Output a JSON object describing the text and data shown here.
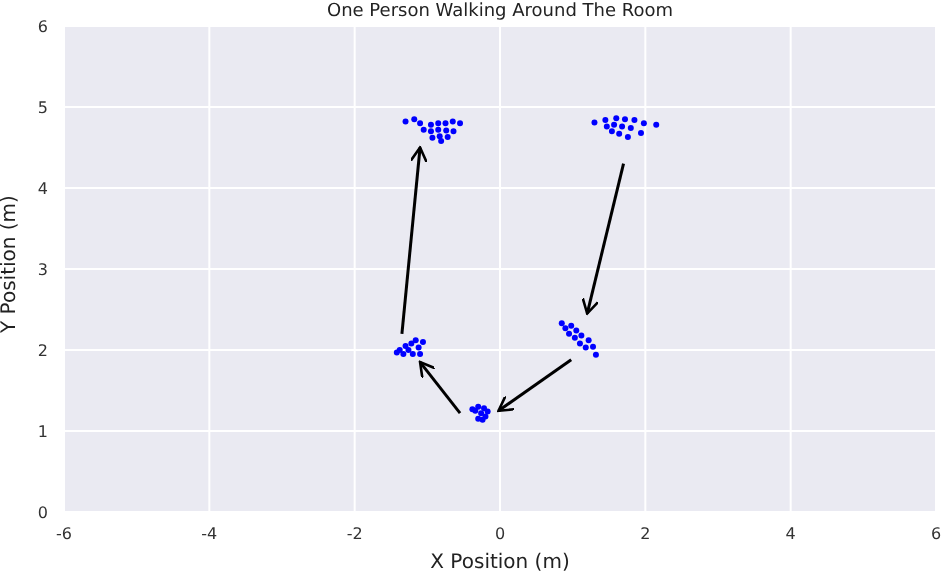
{
  "chart_data": {
    "type": "scatter",
    "title": "One Person Walking Around The Room",
    "xlabel": "X Position (m)",
    "ylabel": "Y Position (m)",
    "xlim": [
      -6,
      6
    ],
    "xticks": [
      -6,
      -4,
      -2,
      0,
      2,
      4,
      6
    ],
    "ylim": [
      0,
      6
    ],
    "yticks": [
      0,
      1,
      2,
      3,
      4,
      5,
      6
    ],
    "grid": true,
    "marker": "circle",
    "series": [
      {
        "color": "#0000ff",
        "x": [
          -1.3,
          -1.18,
          -1.1,
          -1.05,
          -0.95,
          -0.95,
          -0.93,
          -0.85,
          -0.85,
          -0.83,
          -0.81,
          -0.75,
          -0.74,
          -0.72,
          -0.65,
          -0.64,
          -0.55,
          1.3,
          1.45,
          1.47,
          1.6,
          1.57,
          1.54,
          1.72,
          1.68,
          1.64,
          1.85,
          1.8,
          1.76,
          1.98,
          1.94,
          2.15,
          -1.42,
          -1.38,
          -1.33,
          -1.3,
          -1.26,
          -1.22,
          -1.2,
          -1.16,
          -1.12,
          -1.1,
          -1.06,
          0.85,
          0.9,
          0.95,
          0.98,
          1.03,
          1.05,
          1.1,
          1.12,
          1.18,
          1.22,
          1.28,
          1.32,
          -0.38,
          -0.34,
          -0.3,
          -0.26,
          -0.22,
          -0.2,
          -0.17,
          -0.3,
          -0.24
        ],
        "values": [
          4.82,
          4.85,
          4.8,
          4.72,
          4.78,
          4.7,
          4.62,
          4.8,
          4.72,
          4.64,
          4.58,
          4.8,
          4.71,
          4.63,
          4.82,
          4.7,
          4.8,
          4.81,
          4.84,
          4.76,
          4.86,
          4.78,
          4.7,
          4.85,
          4.76,
          4.67,
          4.84,
          4.74,
          4.63,
          4.8,
          4.68,
          4.78,
          1.97,
          2.0,
          1.95,
          2.05,
          2.0,
          2.08,
          1.95,
          2.12,
          2.03,
          1.95,
          2.1,
          2.33,
          2.27,
          2.2,
          2.3,
          2.15,
          2.24,
          2.08,
          2.18,
          2.03,
          2.12,
          2.04,
          1.94,
          1.27,
          1.25,
          1.3,
          1.22,
          1.28,
          1.18,
          1.24,
          1.15,
          1.14
        ]
      }
    ]
  }
}
